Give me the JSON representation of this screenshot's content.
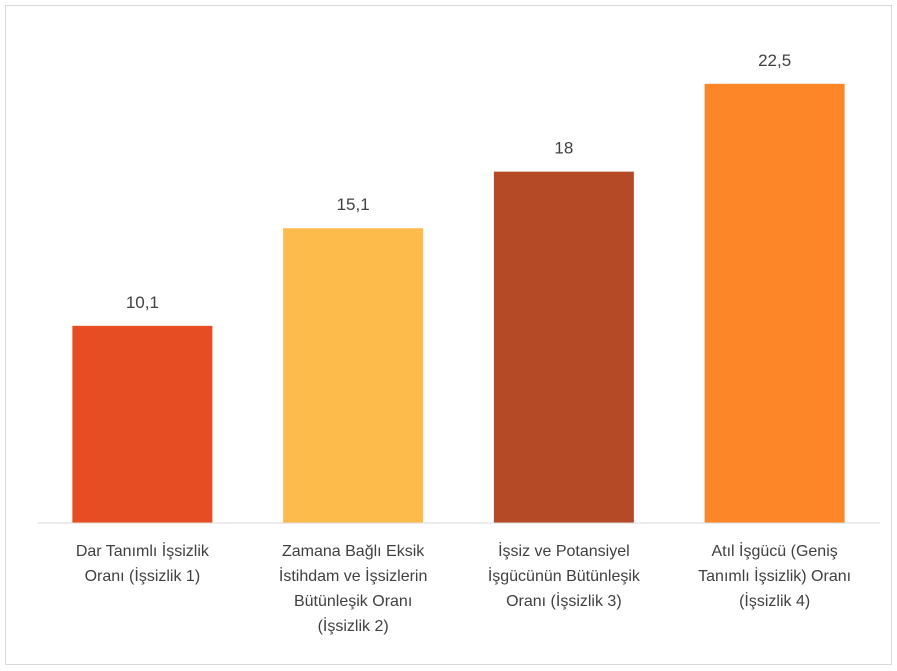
{
  "chart_data": {
    "type": "bar",
    "categories": [
      "Dar Tanımlı İşsizlik\nOranı (İşsizlik 1)",
      "Zamana Bağlı Eksik\nİstihdam ve İşsizlerin\nBütünleşik Oranı\n(İşsizlik 2)",
      "İşsiz ve Potansiyel\nİşgücünün Bütünleşik\nOranı (İşsizlik 3)",
      "Atıl İşgücü (Geniş\nTanımlı İşsizlik) Oranı\n(İşsizlik 4)"
    ],
    "values": [
      10.1,
      15.1,
      18,
      22.5
    ],
    "value_labels": [
      "10,1",
      "15,1",
      "18",
      "22,5"
    ],
    "colors": [
      "#e64d22",
      "#fdbb4b",
      "#b54a26",
      "#fd8628"
    ],
    "ylim": [
      0,
      25
    ]
  }
}
